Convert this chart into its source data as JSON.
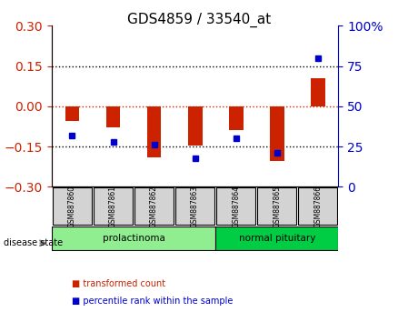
{
  "title": "GDS4859 / 33540_at",
  "samples": [
    "GSM887860",
    "GSM887861",
    "GSM887862",
    "GSM887863",
    "GSM887864",
    "GSM887865",
    "GSM887866"
  ],
  "transformed_count": [
    -0.055,
    -0.08,
    -0.19,
    -0.145,
    -0.09,
    -0.205,
    0.105
  ],
  "percentile_rank": [
    0.32,
    0.28,
    0.26,
    0.175,
    0.3,
    0.21,
    0.8
  ],
  "ylim_left": [
    -0.3,
    0.3
  ],
  "ylim_right": [
    0,
    100
  ],
  "yticks_left": [
    -0.3,
    -0.15,
    0,
    0.15,
    0.3
  ],
  "yticks_right": [
    0,
    25,
    50,
    75,
    100
  ],
  "hlines_black": [
    -0.15,
    0.15
  ],
  "hline_red": 0,
  "disease_groups": [
    {
      "label": "prolactinoma",
      "samples": [
        0,
        1,
        2,
        3
      ],
      "color": "#90ee90"
    },
    {
      "label": "normal pituitary",
      "samples": [
        4,
        5,
        6
      ],
      "color": "#00cc00"
    }
  ],
  "disease_state_label": "disease state",
  "legend_items": [
    {
      "label": "transformed count",
      "color": "#cc2200"
    },
    {
      "label": "percentile rank within the sample",
      "color": "#0000cc"
    }
  ],
  "bar_color": "#cc2200",
  "dot_color": "#0000cc",
  "bar_width": 0.35,
  "background_color": "#ffffff",
  "plot_bg": "#ffffff",
  "tick_label_bg": "#d3d3d3",
  "left_axis_color": "#cc2200",
  "right_axis_color": "#0000cc"
}
